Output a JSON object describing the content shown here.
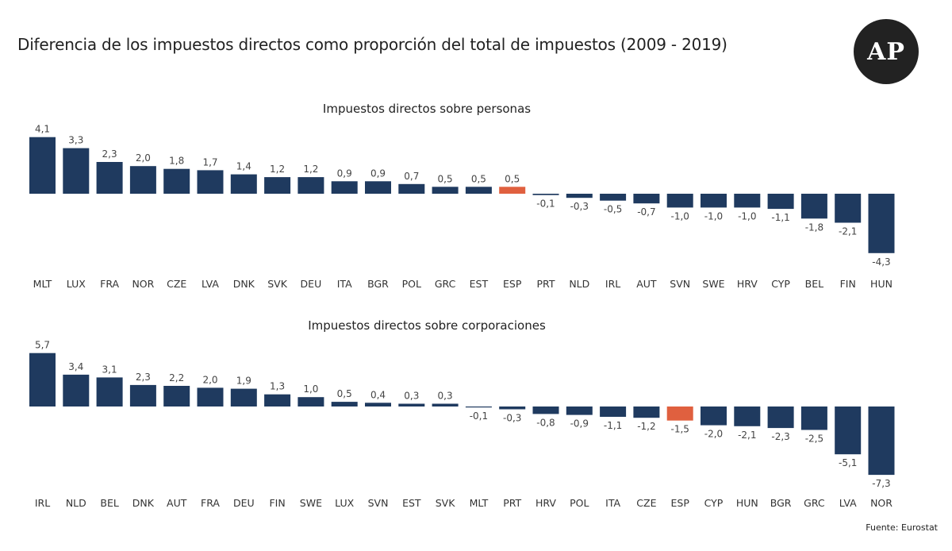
{
  "header": {
    "title": "Diferencia de los impuestos directos como proporción del total de impuestos (2009 - 2019)",
    "logo_text": "AP"
  },
  "footer": {
    "source": "Fuente: Eurostat"
  },
  "colors": {
    "bar": "#1f3a5f",
    "highlight": "#e0603f",
    "text": "#333333"
  },
  "chart_data": [
    {
      "type": "bar",
      "title": "Impuestos directos sobre personas",
      "categories": [
        "MLT",
        "LUX",
        "FRA",
        "NOR",
        "CZE",
        "LVA",
        "DNK",
        "SVK",
        "DEU",
        "ITA",
        "BGR",
        "POL",
        "GRC",
        "EST",
        "ESP",
        "PRT",
        "NLD",
        "IRL",
        "AUT",
        "SVN",
        "SWE",
        "HRV",
        "CYP",
        "BEL",
        "FIN",
        "HUN"
      ],
      "values": [
        4.1,
        3.3,
        2.3,
        2.0,
        1.8,
        1.7,
        1.4,
        1.2,
        1.2,
        0.9,
        0.9,
        0.7,
        0.5,
        0.5,
        0.5,
        -0.1,
        -0.3,
        -0.5,
        -0.7,
        -1.0,
        -1.0,
        -1.0,
        -1.1,
        -1.8,
        -2.1,
        -4.3
      ],
      "value_labels": [
        "4,1",
        "3,3",
        "2,3",
        "2,0",
        "1,8",
        "1,7",
        "1,4",
        "1,2",
        "1,2",
        "0,9",
        "0,9",
        "0,7",
        "0,5",
        "0,5",
        "0,5",
        "-0,1",
        "-0,3",
        "-0,5",
        "-0,7",
        "-1,0",
        "-1,0",
        "-1,0",
        "-1,1",
        "-1,8",
        "-2,1",
        "-4,3"
      ],
      "highlight": "ESP",
      "xlabel": "",
      "ylabel": ""
    },
    {
      "type": "bar",
      "title": "Impuestos directos sobre corporaciones",
      "categories": [
        "IRL",
        "NLD",
        "BEL",
        "DNK",
        "AUT",
        "FRA",
        "DEU",
        "FIN",
        "SWE",
        "LUX",
        "SVN",
        "EST",
        "SVK",
        "MLT",
        "PRT",
        "HRV",
        "POL",
        "ITA",
        "CZE",
        "ESP",
        "CYP",
        "HUN",
        "BGR",
        "GRC",
        "LVA",
        "NOR"
      ],
      "values": [
        5.7,
        3.4,
        3.1,
        2.3,
        2.2,
        2.0,
        1.9,
        1.3,
        1.0,
        0.5,
        0.4,
        0.3,
        0.3,
        -0.1,
        -0.3,
        -0.8,
        -0.9,
        -1.1,
        -1.2,
        -1.5,
        -2.0,
        -2.1,
        -2.3,
        -2.5,
        -5.1,
        -7.3
      ],
      "value_labels": [
        "5,7",
        "3,4",
        "3,1",
        "2,3",
        "2,2",
        "2,0",
        "1,9",
        "1,3",
        "1,0",
        "0,5",
        "0,4",
        "0,3",
        "0,3",
        "-0,1",
        "-0,3",
        "-0,8",
        "-0,9",
        "-1,1",
        "-1,2",
        "-1,5",
        "-2,0",
        "-2,1",
        "-2,3",
        "-2,5",
        "-5,1",
        "-7,3"
      ],
      "highlight": "ESP",
      "xlabel": "",
      "ylabel": ""
    }
  ]
}
